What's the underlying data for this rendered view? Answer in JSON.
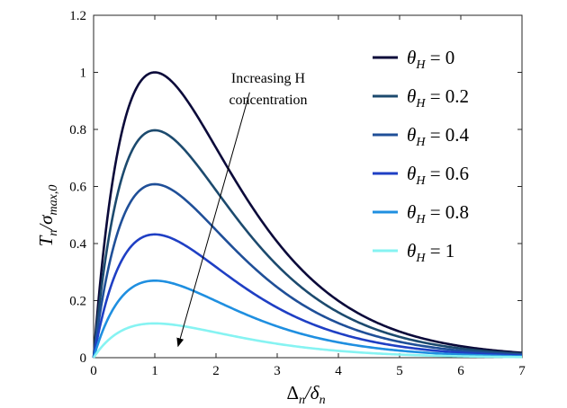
{
  "chart_data": {
    "type": "line",
    "title": "",
    "xlabel": "Δn/δn",
    "ylabel": "Tn/σmax,0",
    "xlim": [
      0,
      7
    ],
    "ylim": [
      0,
      1.2
    ],
    "x_ticks": [
      "0",
      "1",
      "2",
      "3",
      "4",
      "5",
      "6",
      "7"
    ],
    "y_ticks": [
      "0",
      "0.2",
      "0.4",
      "0.6",
      "0.8",
      "1",
      "1.2"
    ],
    "grid": false,
    "legend_position": "top-right",
    "curve_formula": "T = peak * (x) * exp(1 - x)",
    "series": [
      {
        "name": "θH = 0",
        "legend_value": "0",
        "peak": 1.0,
        "color": "#0b0a3a"
      },
      {
        "name": "θH = 0.2",
        "legend_value": "0.2",
        "peak": 0.797,
        "color": "#1c4a6e"
      },
      {
        "name": "θH = 0.4",
        "legend_value": "0.4",
        "peak": 0.608,
        "color": "#1f4f98"
      },
      {
        "name": "θH = 0.6",
        "legend_value": "0.6",
        "peak": 0.432,
        "color": "#1f3fc4"
      },
      {
        "name": "θH = 0.8",
        "legend_value": "0.8",
        "peak": 0.27,
        "color": "#1f8fe0"
      },
      {
        "name": "θH = 1",
        "legend_value": "1",
        "peak": 0.12,
        "color": "#86f3f2"
      }
    ],
    "annotation": {
      "line1": "Increasing H",
      "line2": "concentration",
      "arrow_from": [
        2.55,
        0.93
      ],
      "arrow_to": [
        1.38,
        0.04
      ]
    }
  }
}
